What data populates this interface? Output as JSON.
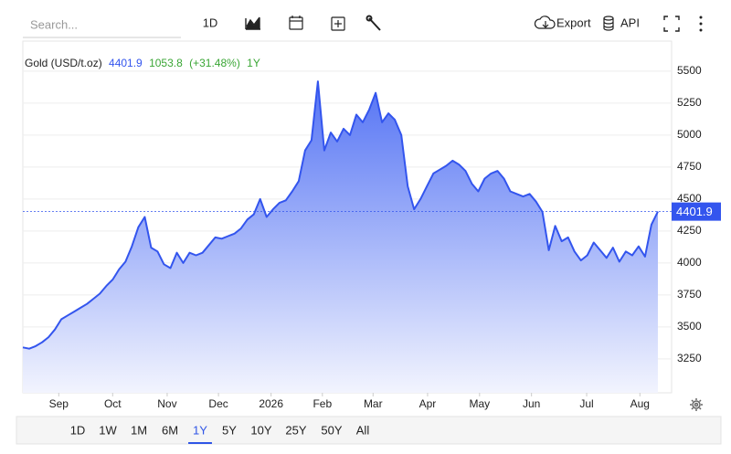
{
  "toolbar": {
    "search_placeholder": "Search...",
    "interval": "1D",
    "export": "Export",
    "api": "API"
  },
  "chart_data": {
    "type": "area",
    "title": "Gold (USD/t.oz)",
    "change": 1053.8,
    "change_pct": "(+31.48%)",
    "period": "1Y",
    "color": "#3355ee",
    "x": [
      0,
      1,
      2,
      3,
      4,
      5,
      6,
      7,
      8,
      9,
      10,
      11,
      12,
      13,
      14,
      15,
      16,
      17,
      18,
      19,
      20,
      21,
      22,
      23,
      24,
      25,
      26,
      27,
      28,
      29,
      30,
      31,
      32,
      33,
      34,
      35,
      36,
      37,
      38,
      39,
      40,
      41,
      42,
      43,
      44,
      45,
      46,
      47,
      48,
      49,
      50,
      51,
      52,
      53,
      54,
      55,
      56,
      57,
      58,
      59,
      60,
      61,
      62,
      63,
      64,
      65,
      66,
      67,
      68,
      69,
      70,
      71,
      72,
      73,
      74,
      75,
      76,
      77,
      78,
      79,
      80,
      81,
      82,
      83,
      84,
      85,
      86,
      87,
      88,
      89,
      90,
      91,
      92,
      93,
      94,
      95,
      96,
      97,
      98,
      99
    ],
    "values": [
      3340,
      3330,
      3350,
      3380,
      3420,
      3480,
      3560,
      3590,
      3620,
      3650,
      3680,
      3720,
      3760,
      3820,
      3870,
      3950,
      4010,
      4130,
      4280,
      4360,
      4120,
      4090,
      3990,
      3960,
      4080,
      4000,
      4080,
      4060,
      4080,
      4140,
      4200,
      4190,
      4210,
      4230,
      4270,
      4340,
      4380,
      4500,
      4360,
      4420,
      4470,
      4490,
      4560,
      4640,
      4880,
      4960,
      5420,
      4880,
      5020,
      4950,
      5050,
      5000,
      5160,
      5100,
      5200,
      5330,
      5100,
      5170,
      5120,
      5000,
      4600,
      4420,
      4500,
      4600,
      4700,
      4730,
      4760,
      4800,
      4770,
      4720,
      4620,
      4560,
      4660,
      4700,
      4720,
      4660,
      4560,
      4540,
      4520,
      4540,
      4480,
      4400,
      4100,
      4290,
      4170,
      4200,
      4090,
      4020,
      4060,
      4160,
      4100,
      4040,
      4120,
      4010,
      4090,
      4060,
      4130,
      4050,
      4300,
      4401.9
    ],
    "xlim": [
      0,
      101
    ],
    "xticks": [
      {
        "value": 5.6,
        "label": "Sep"
      },
      {
        "value": 14,
        "label": "Oct"
      },
      {
        "value": 22.5,
        "label": "Nov"
      },
      {
        "value": 30.5,
        "label": "Dec"
      },
      {
        "value": 38.7,
        "label": "2026"
      },
      {
        "value": 46.7,
        "label": "Feb"
      },
      {
        "value": 54.6,
        "label": "Mar"
      },
      {
        "value": 63.1,
        "label": "Apr"
      },
      {
        "value": 71.2,
        "label": "May"
      },
      {
        "value": 79.3,
        "label": "Jun"
      },
      {
        "value": 87.9,
        "label": "Jul"
      },
      {
        "value": 96.2,
        "label": "Aug"
      }
    ],
    "ylim": [
      2985,
      5735
    ],
    "yticks": [
      3250,
      3500,
      3750,
      4000,
      4250,
      4500,
      4750,
      5000,
      5250,
      5500
    ],
    "grid": true
  },
  "range_buttons": [
    "1D",
    "1W",
    "1M",
    "6M",
    "1Y",
    "5Y",
    "10Y",
    "25Y",
    "50Y",
    "All"
  ],
  "selected_range_index": 4
}
